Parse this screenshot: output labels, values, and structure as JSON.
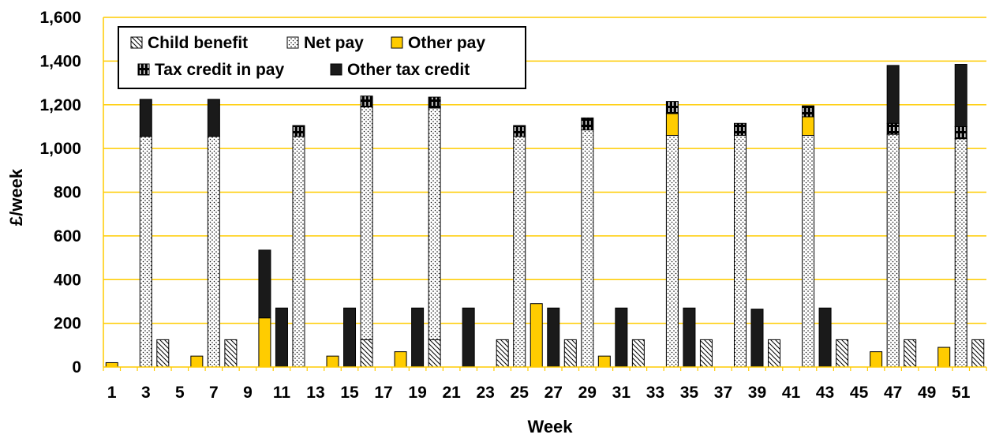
{
  "chart_data": {
    "type": "bar",
    "stacked": true,
    "xlabel": "Week",
    "ylabel": "£/week",
    "ylim": [
      0,
      1600
    ],
    "yticks": [
      0,
      200,
      400,
      600,
      800,
      1000,
      1200,
      1400,
      1600
    ],
    "ytick_labels": [
      "0",
      "200",
      "400",
      "600",
      "800",
      "1,000",
      "1,200",
      "1,400",
      "1,600"
    ],
    "x": [
      1,
      2,
      3,
      4,
      5,
      6,
      7,
      8,
      9,
      10,
      11,
      12,
      13,
      14,
      15,
      16,
      17,
      18,
      19,
      20,
      21,
      22,
      23,
      24,
      25,
      26,
      27,
      28,
      29,
      30,
      31,
      32,
      33,
      34,
      35,
      36,
      37,
      38,
      39,
      40,
      41,
      42,
      43,
      44,
      45,
      46,
      47,
      48,
      49,
      50,
      51,
      52
    ],
    "xtick_labels": [
      "1",
      "3",
      "5",
      "7",
      "9",
      "11",
      "13",
      "15",
      "17",
      "19",
      "21",
      "23",
      "25",
      "27",
      "29",
      "31",
      "33",
      "35",
      "37",
      "39",
      "41",
      "43",
      "45",
      "47",
      "49",
      "51"
    ],
    "grid": true,
    "legend_position": "top-left",
    "series": [
      {
        "name": "Child benefit",
        "color": "#ffffff",
        "pattern": "diagonal-hatch",
        "values": [
          0,
          0,
          0,
          125,
          0,
          0,
          0,
          125,
          0,
          0,
          0,
          0,
          0,
          0,
          0,
          125,
          0,
          0,
          0,
          125,
          0,
          0,
          0,
          125,
          0,
          0,
          0,
          125,
          0,
          0,
          0,
          125,
          0,
          0,
          0,
          125,
          0,
          0,
          0,
          125,
          0,
          0,
          0,
          125,
          0,
          0,
          0,
          125,
          0,
          0,
          0,
          125
        ]
      },
      {
        "name": "Net pay",
        "color": "#ffffff",
        "pattern": "dots",
        "values": [
          0,
          0,
          1055,
          0,
          0,
          0,
          1055,
          0,
          0,
          0,
          0,
          1055,
          0,
          0,
          0,
          1065,
          0,
          0,
          0,
          1060,
          0,
          0,
          0,
          0,
          1055,
          0,
          0,
          0,
          1085,
          0,
          0,
          0,
          0,
          1060,
          0,
          0,
          0,
          1060,
          0,
          0,
          0,
          1060,
          0,
          0,
          0,
          0,
          1065,
          0,
          0,
          0,
          1045,
          0
        ]
      },
      {
        "name": "Other pay",
        "color": "#ffcc00",
        "pattern": "solid",
        "values": [
          20,
          0,
          0,
          0,
          0,
          50,
          0,
          0,
          0,
          225,
          0,
          0,
          0,
          50,
          0,
          0,
          0,
          70,
          0,
          0,
          0,
          0,
          0,
          0,
          0,
          290,
          0,
          0,
          0,
          50,
          0,
          0,
          0,
          100,
          0,
          0,
          0,
          0,
          0,
          0,
          0,
          85,
          0,
          0,
          0,
          70,
          0,
          0,
          0,
          90,
          0,
          0
        ]
      },
      {
        "name": "Tax credit in pay",
        "color": "#000000",
        "pattern": "vertical-dashes",
        "values": [
          0,
          0,
          0,
          0,
          0,
          0,
          0,
          0,
          0,
          0,
          0,
          50,
          0,
          0,
          0,
          50,
          0,
          0,
          0,
          50,
          0,
          0,
          0,
          0,
          50,
          0,
          0,
          0,
          55,
          0,
          0,
          0,
          0,
          55,
          0,
          0,
          0,
          55,
          0,
          0,
          0,
          50,
          0,
          0,
          0,
          0,
          50,
          0,
          0,
          0,
          55,
          0
        ]
      },
      {
        "name": "Other tax credit",
        "color": "#1a1a1a",
        "pattern": "solid",
        "values": [
          0,
          0,
          170,
          0,
          0,
          0,
          170,
          0,
          0,
          310,
          270,
          0,
          0,
          0,
          270,
          0,
          0,
          0,
          270,
          0,
          0,
          270,
          0,
          0,
          0,
          0,
          270,
          0,
          0,
          0,
          270,
          0,
          0,
          0,
          270,
          0,
          0,
          0,
          265,
          0,
          0,
          0,
          270,
          0,
          0,
          0,
          265,
          0,
          0,
          0,
          285,
          0
        ]
      }
    ]
  }
}
